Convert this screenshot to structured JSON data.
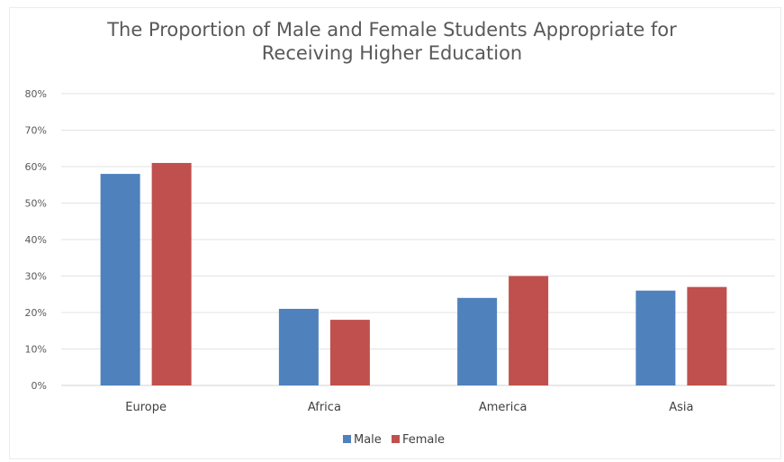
{
  "chart_data": {
    "type": "bar",
    "title": "The Proportion of Male and Female Students Appropriate for\nReceiving Higher Education",
    "categories": [
      "Europe",
      "Africa",
      "America",
      "Asia"
    ],
    "series": [
      {
        "name": "Male",
        "values": [
          58,
          21,
          24,
          26
        ],
        "color": "#4f81bd"
      },
      {
        "name": "Female",
        "values": [
          61,
          18,
          30,
          27
        ],
        "color": "#c0504d"
      }
    ],
    "yticks": [
      "0%",
      "10%",
      "20%",
      "30%",
      "40%",
      "50%",
      "60%",
      "70%",
      "80%"
    ],
    "ylim": [
      0,
      80
    ],
    "xlabel": "",
    "ylabel": "",
    "grid": true,
    "legend": "bottom"
  }
}
